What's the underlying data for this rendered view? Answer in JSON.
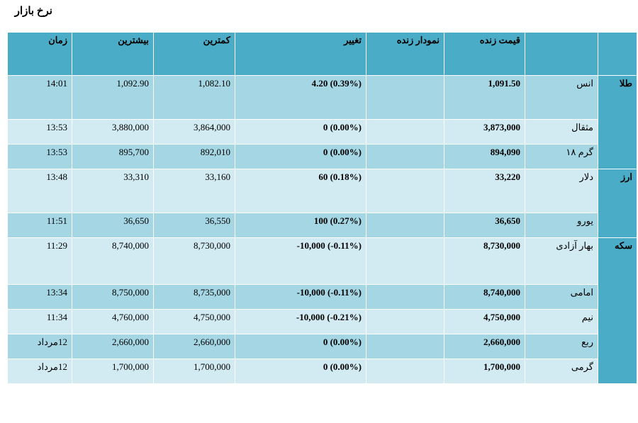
{
  "page_title": "نرخ بازار",
  "headers": {
    "group": "",
    "item": "",
    "live_price": "قیمت زنده",
    "live_chart": "نمودار زنده",
    "change": "تغییر",
    "lowest": "کمترین",
    "highest": "بیشترین",
    "time": "زمان"
  },
  "rows": [
    {
      "group": "طلا",
      "item": "انس",
      "price": "1,091.50",
      "chart": "",
      "change": "4.20 (0.39%)",
      "low": "1,082.10",
      "high": "1,092.90",
      "time": "14:01"
    },
    {
      "group": "",
      "item": "مثقال",
      "price": "3,873,000",
      "chart": "",
      "change": "0 (0.00%)",
      "low": "3,864,000",
      "high": "3,880,000",
      "time": "13:53"
    },
    {
      "group": "",
      "item": "گرم ۱۸",
      "price": "894,090",
      "chart": "",
      "change": "0 (0.00%)",
      "low": "892,010",
      "high": "895,700",
      "time": "13:53"
    },
    {
      "group": "ارز",
      "item": "دلار",
      "price": "33,220",
      "chart": "",
      "change": "60 (0.18%)",
      "low": "33,160",
      "high": "33,310",
      "time": "13:48"
    },
    {
      "group": "",
      "item": "یورو",
      "price": "36,650",
      "chart": "",
      "change": "100 (0.27%)",
      "low": "36,550",
      "high": "36,650",
      "time": "11:51"
    },
    {
      "group": "سکه",
      "item": "بهار آزادی",
      "price": "8,730,000",
      "chart": "",
      "change": "-10,000 (-0.11%)",
      "low": "8,730,000",
      "high": "8,740,000",
      "time": "11:29"
    },
    {
      "group": "",
      "item": "امامی",
      "price": "8,740,000",
      "chart": "",
      "change": "-10,000 (-0.11%)",
      "low": "8,735,000",
      "high": "8,750,000",
      "time": "13:34"
    },
    {
      "group": "",
      "item": "نیم",
      "price": "4,750,000",
      "chart": "",
      "change": "-10,000 (-0.21%)",
      "low": "4,750,000",
      "high": "4,760,000",
      "time": "11:34"
    },
    {
      "group": "",
      "item": "ربع",
      "price": "2,660,000",
      "chart": "",
      "change": "0 (0.00%)",
      "low": "2,660,000",
      "high": "2,660,000",
      "time": "12مرداد"
    },
    {
      "group": "",
      "item": "گرمی",
      "price": "1,700,000",
      "chart": "",
      "change": "0 (0.00%)",
      "low": "1,700,000",
      "high": "1,700,000",
      "time": "12مرداد"
    }
  ]
}
